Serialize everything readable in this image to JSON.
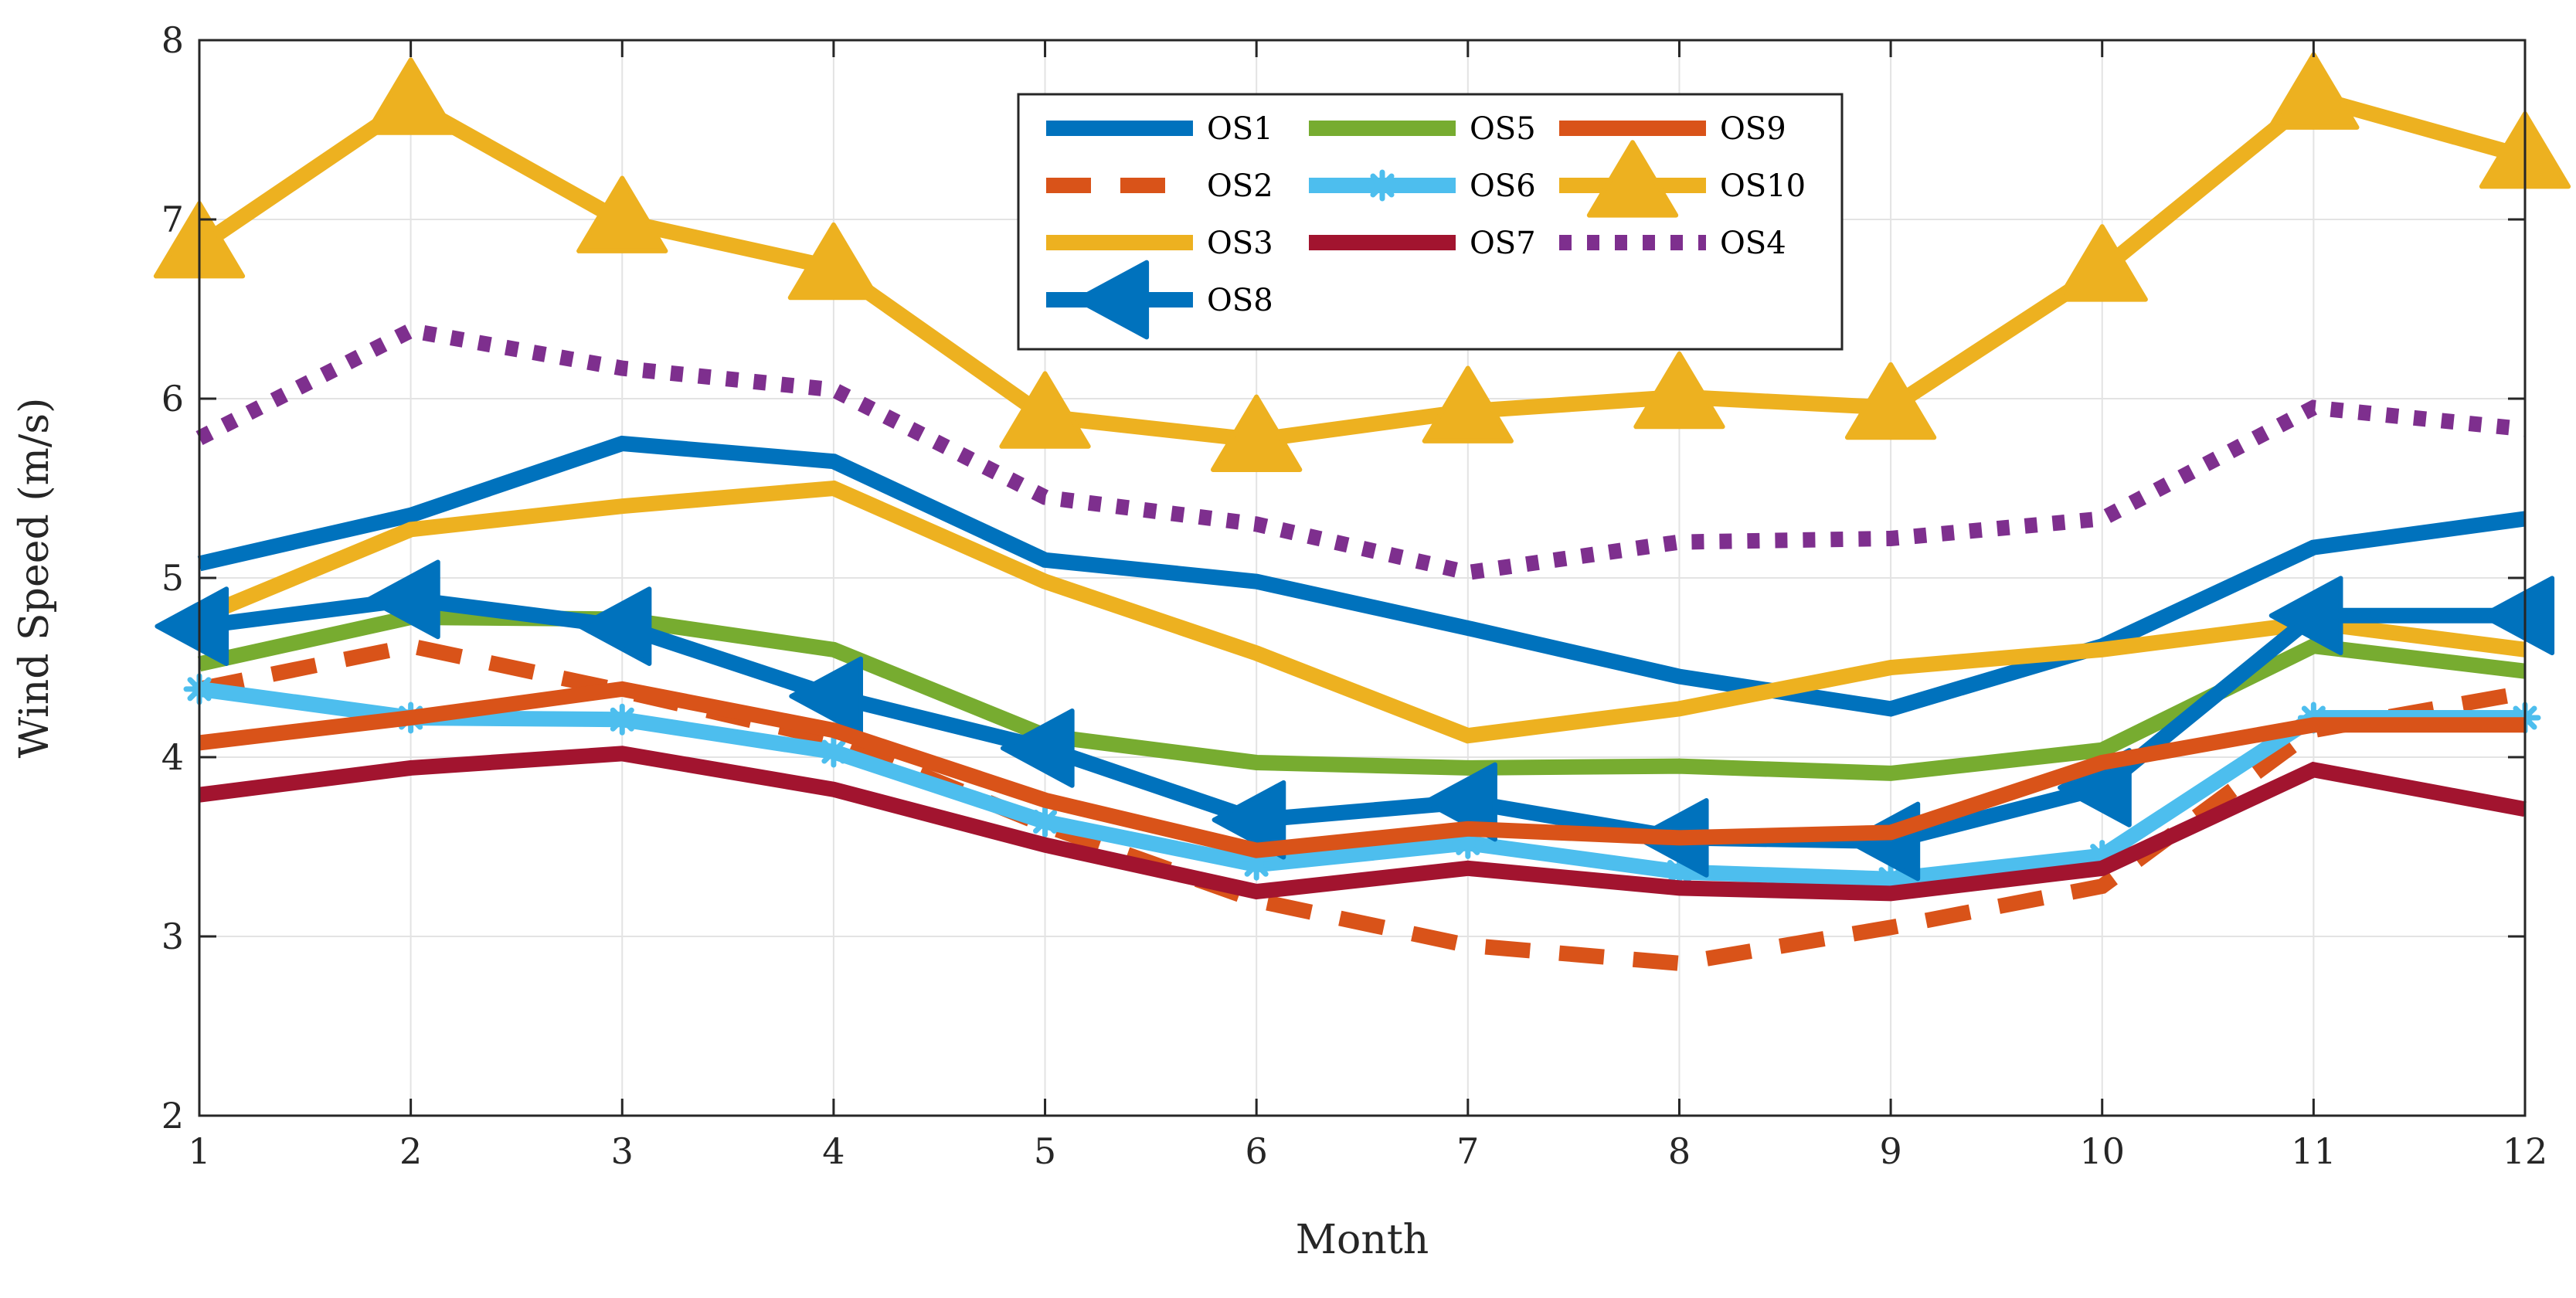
{
  "chart_data": {
    "type": "line",
    "title": "",
    "xlabel": "Month",
    "ylabel": "Wind Speed (m/s)",
    "xlim": [
      1,
      12
    ],
    "ylim": [
      2,
      8
    ],
    "grid": true,
    "legend_position": "top-center",
    "x": [
      1,
      2,
      3,
      4,
      5,
      6,
      7,
      8,
      9,
      10,
      11,
      12
    ],
    "x_tick_labels": [
      "1",
      "2",
      "3",
      "4",
      "5",
      "6",
      "7",
      "8",
      "9",
      "10",
      "11",
      "12"
    ],
    "y_tick_labels": [
      "2",
      "3",
      "4",
      "5",
      "6",
      "7",
      "8"
    ],
    "y_ticks": [
      2,
      3,
      4,
      5,
      6,
      7,
      8
    ],
    "series": [
      {
        "name": "OS1",
        "color": "#0072BD",
        "dash": "solid",
        "marker": "none",
        "values": [
          5.08,
          5.35,
          5.75,
          5.65,
          5.1,
          4.98,
          4.72,
          4.45,
          4.27,
          4.62,
          5.17,
          5.33
        ]
      },
      {
        "name": "OS2",
        "color": "#D95319",
        "dash": "dashed",
        "marker": "none",
        "values": [
          4.38,
          4.62,
          4.37,
          4.1,
          3.62,
          3.2,
          2.95,
          2.85,
          3.05,
          3.28,
          4.15,
          4.36
        ]
      },
      {
        "name": "OS3",
        "color": "#EDB120",
        "dash": "solid",
        "marker": "none",
        "values": [
          4.78,
          5.27,
          5.4,
          5.5,
          4.98,
          4.58,
          4.12,
          4.27,
          4.5,
          4.6,
          4.75,
          4.6
        ]
      },
      {
        "name": "OS4",
        "color": "#7E2F8E",
        "dash": "dotted",
        "marker": "none",
        "values": [
          5.78,
          6.38,
          6.17,
          6.05,
          5.45,
          5.3,
          5.03,
          5.2,
          5.22,
          5.33,
          5.95,
          5.83
        ]
      },
      {
        "name": "OS5",
        "color": "#77AC30",
        "dash": "solid",
        "marker": "none",
        "values": [
          4.52,
          4.78,
          4.77,
          4.6,
          4.12,
          3.97,
          3.94,
          3.95,
          3.91,
          4.04,
          4.62,
          4.48
        ]
      },
      {
        "name": "OS6",
        "color": "#4DBEEE",
        "dash": "solid",
        "marker": "asterisk",
        "values": [
          4.38,
          4.22,
          4.21,
          4.03,
          3.64,
          3.4,
          3.52,
          3.36,
          3.32,
          3.45,
          4.22,
          4.22
        ]
      },
      {
        "name": "OS7",
        "color": "#A2142F",
        "dash": "solid",
        "marker": "none",
        "values": [
          3.79,
          3.94,
          4.02,
          3.82,
          3.51,
          3.25,
          3.38,
          3.27,
          3.24,
          3.38,
          3.93,
          3.71
        ]
      },
      {
        "name": "OS8",
        "color": "#0072BD",
        "dash": "solid",
        "marker": "triangle-left",
        "values": [
          4.73,
          4.88,
          4.73,
          4.34,
          4.05,
          3.65,
          3.75,
          3.55,
          3.53,
          3.83,
          4.79,
          4.79
        ]
      },
      {
        "name": "OS9",
        "color": "#D95319",
        "dash": "solid",
        "marker": "none",
        "values": [
          4.08,
          4.22,
          4.38,
          4.15,
          3.76,
          3.48,
          3.6,
          3.55,
          3.58,
          3.97,
          4.18,
          4.18
        ]
      },
      {
        "name": "OS10",
        "color": "#EDB120",
        "dash": "solid",
        "marker": "triangle-up",
        "values": [
          6.85,
          7.65,
          6.99,
          6.73,
          5.9,
          5.77,
          5.93,
          6.01,
          5.95,
          6.72,
          7.68,
          7.35
        ]
      }
    ],
    "legend_order": [
      "OS1",
      "OS5",
      "OS9",
      "OS2",
      "OS6",
      "OS10",
      "OS3",
      "OS7",
      "OS4",
      "OS8"
    ]
  }
}
